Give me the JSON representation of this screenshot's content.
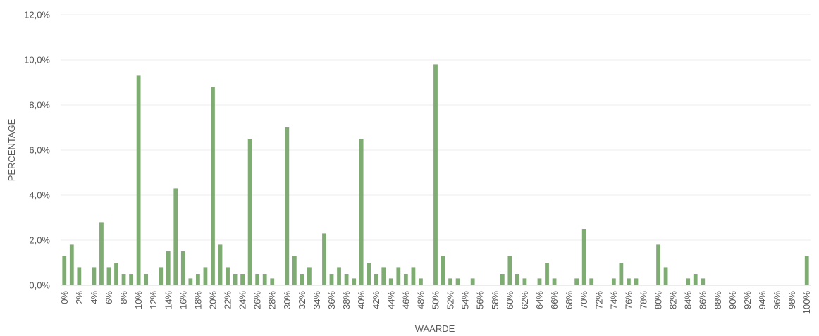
{
  "chart_data": {
    "type": "bar",
    "xlabel": "WAARDE",
    "ylabel": "PERCENTAGE",
    "ylim": [
      0,
      12
    ],
    "grid": true,
    "legend": "none",
    "colors": {
      "bar": "#7fac72",
      "grid": "#ececec",
      "axis": "#d9d9d9",
      "text": "#595959"
    },
    "y_ticks": [
      "0,0%",
      "2,0%",
      "4,0%",
      "6,0%",
      "8,0%",
      "10,0%",
      "12,0%"
    ],
    "categories": [
      "0%",
      "1%",
      "2%",
      "3%",
      "4%",
      "5%",
      "6%",
      "7%",
      "8%",
      "9%",
      "10%",
      "11%",
      "12%",
      "13%",
      "14%",
      "15%",
      "16%",
      "17%",
      "18%",
      "19%",
      "20%",
      "21%",
      "22%",
      "23%",
      "24%",
      "25%",
      "26%",
      "27%",
      "28%",
      "29%",
      "30%",
      "31%",
      "32%",
      "33%",
      "34%",
      "35%",
      "36%",
      "37%",
      "38%",
      "39%",
      "40%",
      "41%",
      "42%",
      "43%",
      "44%",
      "45%",
      "46%",
      "47%",
      "48%",
      "49%",
      "50%",
      "51%",
      "52%",
      "53%",
      "54%",
      "55%",
      "56%",
      "57%",
      "58%",
      "59%",
      "60%",
      "61%",
      "62%",
      "63%",
      "64%",
      "65%",
      "66%",
      "67%",
      "68%",
      "69%",
      "70%",
      "71%",
      "72%",
      "73%",
      "74%",
      "75%",
      "76%",
      "77%",
      "78%",
      "79%",
      "80%",
      "81%",
      "82%",
      "83%",
      "84%",
      "85%",
      "86%",
      "87%",
      "88%",
      "89%",
      "90%",
      "91%",
      "92%",
      "93%",
      "94%",
      "95%",
      "96%",
      "97%",
      "98%",
      "99%",
      "100%"
    ],
    "x_tick_labels": [
      "0%",
      "2%",
      "4%",
      "6%",
      "8%",
      "10%",
      "12%",
      "14%",
      "16%",
      "18%",
      "20%",
      "22%",
      "24%",
      "26%",
      "28%",
      "30%",
      "32%",
      "34%",
      "36%",
      "38%",
      "40%",
      "42%",
      "44%",
      "46%",
      "48%",
      "50%",
      "52%",
      "54%",
      "56%",
      "58%",
      "60%",
      "62%",
      "64%",
      "66%",
      "68%",
      "70%",
      "72%",
      "74%",
      "76%",
      "78%",
      "80%",
      "82%",
      "84%",
      "86%",
      "88%",
      "90%",
      "92%",
      "94%",
      "96%",
      "98%",
      "100%"
    ],
    "values": [
      1.3,
      1.8,
      0.8,
      0,
      0.8,
      2.8,
      0.8,
      1.0,
      0.5,
      0.5,
      9.3,
      0.5,
      0,
      0.8,
      1.5,
      4.3,
      1.5,
      0.3,
      0.5,
      0.8,
      8.8,
      1.8,
      0.8,
      0.5,
      0.5,
      6.5,
      0.5,
      0.5,
      0.3,
      0,
      7.0,
      1.3,
      0.5,
      0.8,
      0,
      2.3,
      0.5,
      0.8,
      0.5,
      0.3,
      6.5,
      1.0,
      0.5,
      0.8,
      0.3,
      0.8,
      0.5,
      0.8,
      0.3,
      0,
      9.8,
      1.3,
      0.3,
      0.3,
      0,
      0.3,
      0,
      0,
      0,
      0.5,
      1.3,
      0.5,
      0.3,
      0,
      0.3,
      1.0,
      0.3,
      0,
      0,
      0.3,
      2.5,
      0.3,
      0,
      0,
      0.3,
      1.0,
      0.3,
      0.3,
      0,
      0,
      1.8,
      0.8,
      0,
      0,
      0.3,
      0.5,
      0.3,
      0,
      0,
      0,
      0,
      0,
      0,
      0,
      0,
      0,
      0,
      0,
      0,
      0,
      1.3
    ]
  }
}
